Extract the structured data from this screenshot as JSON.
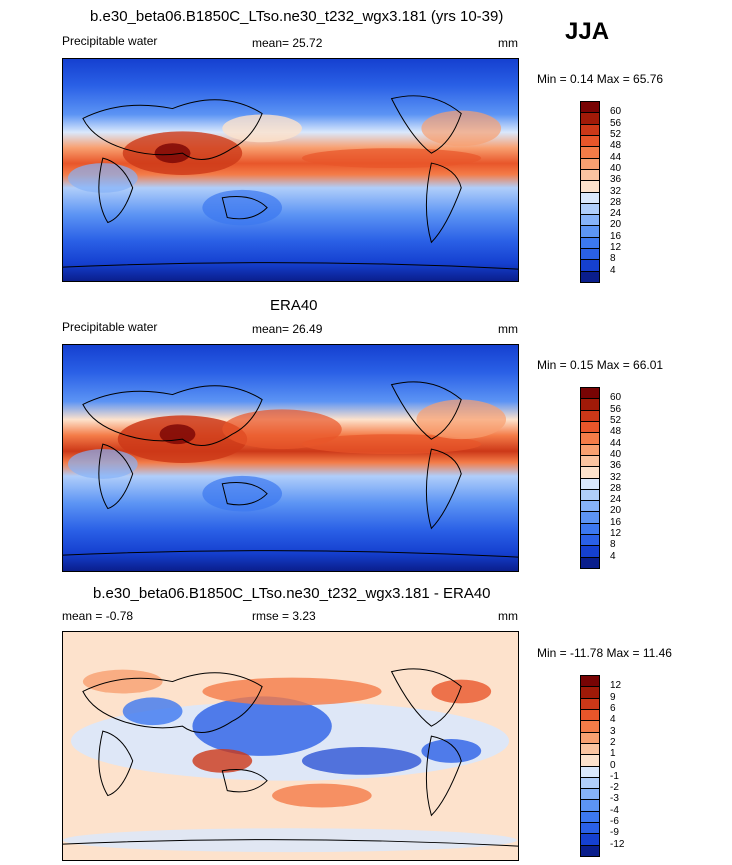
{
  "season_label": "JJA",
  "panels": [
    {
      "title": "b.e30_beta06.B1850C_LTso.ne30_t232_wgx3.181 (yrs 10-39)",
      "left_label": "Precipitable water",
      "center_label": "mean=  25.72",
      "units": "mm",
      "minmax": "Min =   0.14 Max =  65.76",
      "colorbar": {
        "colors": [
          "#0a1e8c",
          "#1540d0",
          "#2a60e6",
          "#3c78f0",
          "#5c94f4",
          "#86b2f8",
          "#b0cefa",
          "#dae8fc",
          "#fde2cc",
          "#fbc4a0",
          "#f8a070",
          "#f47c48",
          "#e8562a",
          "#cc3818",
          "#a01a08",
          "#780404"
        ],
        "labels": [
          "4",
          "8",
          "12",
          "16",
          "20",
          "24",
          "28",
          "32",
          "36",
          "40",
          "44",
          "48",
          "52",
          "56",
          "60"
        ]
      }
    },
    {
      "title": "ERA40",
      "left_label": "Precipitable water",
      "center_label": "mean=  26.49",
      "units": "mm",
      "minmax": "Min =   0.15 Max =  66.01",
      "colorbar": {
        "colors": [
          "#0a1e8c",
          "#1540d0",
          "#2a60e6",
          "#3c78f0",
          "#5c94f4",
          "#86b2f8",
          "#b0cefa",
          "#dae8fc",
          "#fde2cc",
          "#fbc4a0",
          "#f8a070",
          "#f47c48",
          "#e8562a",
          "#cc3818",
          "#a01a08",
          "#780404"
        ],
        "labels": [
          "4",
          "8",
          "12",
          "16",
          "20",
          "24",
          "28",
          "32",
          "36",
          "40",
          "44",
          "48",
          "52",
          "56",
          "60"
        ]
      }
    },
    {
      "title": "b.e30_beta06.B1850C_LTso.ne30_t232_wgx3.181 - ERA40",
      "left_label": "mean =  -0.78",
      "center_label": "rmse =   3.23",
      "units": "mm",
      "minmax": "Min = -11.78 Max =  11.46",
      "colorbar": {
        "colors": [
          "#0a1e8c",
          "#1540d0",
          "#2a60e6",
          "#3c78f0",
          "#5c94f4",
          "#86b2f8",
          "#b0cefa",
          "#dae8fc",
          "#fde2cc",
          "#fbc4a0",
          "#f8a070",
          "#f47c48",
          "#e8562a",
          "#cc3818",
          "#a01a08",
          "#780404"
        ],
        "labels": [
          "-12",
          "-9",
          "-6",
          "-4",
          "-3",
          "-2",
          "-1",
          "0",
          "1",
          "2",
          "3",
          "4",
          "6",
          "9",
          "12"
        ]
      }
    }
  ]
}
